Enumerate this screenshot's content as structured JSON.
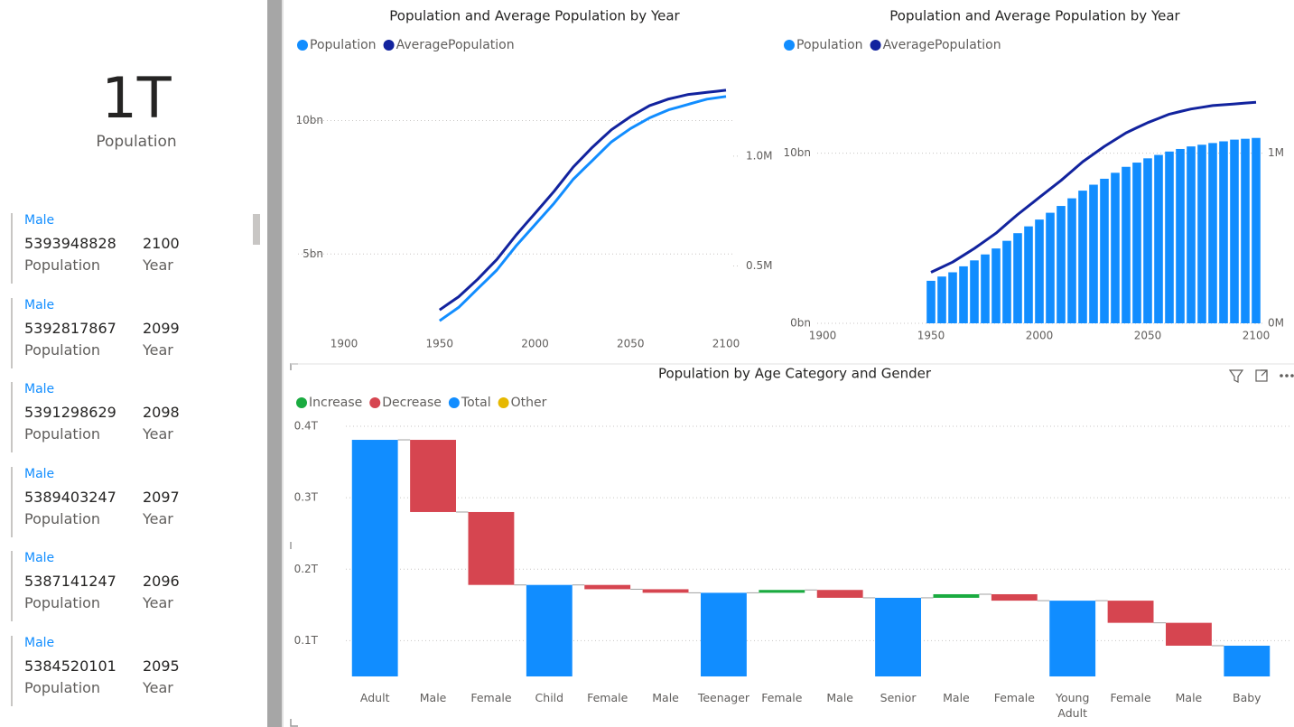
{
  "card": {
    "value": "1T",
    "label": "Population"
  },
  "list": {
    "items": [
      {
        "gender": "Male",
        "population": 5393948828,
        "year": 2100,
        "population_label": "Population",
        "year_label": "Year"
      },
      {
        "gender": "Male",
        "population": 5392817867,
        "year": 2099,
        "population_label": "Population",
        "year_label": "Year"
      },
      {
        "gender": "Male",
        "population": 5391298629,
        "year": 2098,
        "population_label": "Population",
        "year_label": "Year"
      },
      {
        "gender": "Male",
        "population": 5389403247,
        "year": 2097,
        "population_label": "Population",
        "year_label": "Year"
      },
      {
        "gender": "Male",
        "population": 5387141247,
        "year": 2096,
        "population_label": "Population",
        "year_label": "Year"
      },
      {
        "gender": "Male",
        "population": 5384520101,
        "year": 2095,
        "population_label": "Population",
        "year_label": "Year"
      }
    ]
  },
  "chart_data": [
    {
      "type": "line",
      "title": "Population and Average Population by Year",
      "x": [
        1950,
        1955,
        1960,
        1965,
        1970,
        1975,
        1980,
        1985,
        1990,
        1995,
        2000,
        2005,
        2010,
        2015,
        2020,
        2025,
        2030,
        2035,
        2040,
        2045,
        2050,
        2055,
        2060,
        2065,
        2070,
        2075,
        2080,
        2085,
        2090,
        2095,
        2100
      ],
      "series": [
        {
          "name": "Population",
          "color": "#118DFF",
          "values": [
            2500000000,
            2750000000,
            3000000000,
            3350000000,
            3700000000,
            4050000000,
            4400000000,
            4850000000,
            5300000000,
            5700000000,
            6100000000,
            6500000000,
            6900000000,
            7350000000,
            7800000000,
            8150000000,
            8500000000,
            8850000000,
            9200000000,
            9450000000,
            9700000000,
            9900000000,
            10100000000,
            10250000000,
            10400000000,
            10500000000,
            10600000000,
            10700000000,
            10800000000,
            10850000000,
            10900000000
          ]
        },
        {
          "name": "AveragePopulation",
          "color": "#12239E",
          "axis": "y2",
          "values": [
            300000,
            330000,
            360000,
            400000,
            440000,
            485000,
            530000,
            585000,
            640000,
            690000,
            740000,
            790000,
            840000,
            895000,
            950000,
            995000,
            1040000,
            1080000,
            1120000,
            1150000,
            1180000,
            1205000,
            1230000,
            1245000,
            1260000,
            1270000,
            1280000,
            1285000,
            1290000,
            1295000,
            1300000
          ]
        }
      ],
      "xlim": [
        1900,
        2100
      ],
      "xticks": [
        1900,
        1950,
        2000,
        2050,
        2100
      ],
      "ylim": [
        2000000000,
        11300000000
      ],
      "yticks": [
        {
          "value": 5000000000,
          "label": "5bn"
        },
        {
          "value": 10000000000,
          "label": "10bn"
        }
      ],
      "y2lim": [
        190000,
        1320000
      ],
      "y2ticks": [
        {
          "value": 500000,
          "label": "0.5M"
        },
        {
          "value": 1000000,
          "label": "1.0M"
        }
      ],
      "grid": true
    },
    {
      "type": "combo",
      "title": "Population and Average Population by Year",
      "x": [
        1950,
        1955,
        1960,
        1965,
        1970,
        1975,
        1980,
        1985,
        1990,
        1995,
        2000,
        2005,
        2010,
        2015,
        2020,
        2025,
        2030,
        2035,
        2040,
        2045,
        2050,
        2055,
        2060,
        2065,
        2070,
        2075,
        2080,
        2085,
        2090,
        2095,
        2100
      ],
      "series": [
        {
          "name": "Population",
          "color": "#118DFF",
          "type": "bar",
          "values": [
            2500000000,
            2750000000,
            3000000000,
            3350000000,
            3700000000,
            4050000000,
            4400000000,
            4850000000,
            5300000000,
            5700000000,
            6100000000,
            6500000000,
            6900000000,
            7350000000,
            7800000000,
            8150000000,
            8500000000,
            8850000000,
            9200000000,
            9450000000,
            9700000000,
            9900000000,
            10100000000,
            10250000000,
            10400000000,
            10500000000,
            10600000000,
            10700000000,
            10800000000,
            10850000000,
            10900000000
          ]
        },
        {
          "name": "AveragePopulation",
          "color": "#12239E",
          "type": "line",
          "axis": "y2",
          "values": [
            300000,
            330000,
            360000,
            400000,
            440000,
            485000,
            530000,
            585000,
            640000,
            690000,
            740000,
            790000,
            840000,
            895000,
            950000,
            995000,
            1040000,
            1080000,
            1120000,
            1150000,
            1180000,
            1205000,
            1230000,
            1245000,
            1260000,
            1270000,
            1280000,
            1285000,
            1290000,
            1295000,
            1300000
          ]
        }
      ],
      "xlim": [
        1900,
        2100
      ],
      "xticks": [
        1900,
        1950,
        2000,
        2050,
        2100
      ],
      "ylim": [
        0,
        13700000000
      ],
      "yticks": [
        {
          "value": 0,
          "label": "0bn"
        },
        {
          "value": 10000000000,
          "label": "10bn"
        }
      ],
      "y2lim": [
        0,
        1370000
      ],
      "y2ticks": [
        {
          "value": 0,
          "label": "0M"
        },
        {
          "value": 1000000,
          "label": "1M"
        }
      ],
      "grid": true
    },
    {
      "type": "waterfall",
      "title": "Population by Age Category and Gender",
      "legend_items": [
        {
          "name": "Increase",
          "color": "#1AAB40"
        },
        {
          "name": "Decrease",
          "color": "#D64550"
        },
        {
          "name": "Total",
          "color": "#118DFF"
        },
        {
          "name": "Other",
          "color": "#E6B800"
        }
      ],
      "categories": [
        "Adult",
        "Male",
        "Female",
        "Child",
        "Female",
        "Male",
        "Teenager",
        "Female",
        "Male",
        "Senior",
        "Male",
        "Female",
        "Young Adult",
        "Female",
        "Male",
        "Baby"
      ],
      "kinds": [
        "Total",
        "Decrease",
        "Decrease",
        "Total",
        "Decrease",
        "Decrease",
        "Total",
        "Increase",
        "Decrease",
        "Total",
        "Increase",
        "Decrease",
        "Total",
        "Decrease",
        "Decrease",
        "Total"
      ],
      "values": [
        381000000000,
        -101000000000,
        -102000000000,
        178000000000,
        -6000000000,
        -5000000000,
        167000000000,
        4000000000,
        -11000000000,
        160000000000,
        5000000000,
        -9000000000,
        156000000000,
        -31000000000,
        -32000000000,
        93000000000
      ],
      "ylim": [
        50000000000,
        412000000000
      ],
      "yticks": [
        {
          "value": 100000000000,
          "label": "0.1T"
        },
        {
          "value": 200000000000,
          "label": "0.2T"
        },
        {
          "value": 300000000000,
          "label": "0.3T"
        },
        {
          "value": 400000000000,
          "label": "0.4T"
        }
      ],
      "grid": true
    }
  ]
}
